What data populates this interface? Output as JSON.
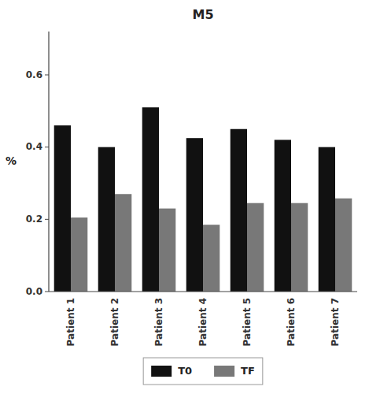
{
  "chart_data": {
    "type": "bar",
    "title": "M5",
    "ylabel": "%",
    "categories": [
      "Patient 1",
      "Patient 2",
      "Patient 3",
      "Patient 4",
      "Patient 5",
      "Patient 6",
      "Patient 7"
    ],
    "series": [
      {
        "name": "T0",
        "color": "#111111",
        "values": [
          0.46,
          0.4,
          0.51,
          0.425,
          0.45,
          0.42,
          0.4
        ]
      },
      {
        "name": "TF",
        "color": "#787878",
        "values": [
          0.205,
          0.27,
          0.23,
          0.185,
          0.245,
          0.245,
          0.258
        ]
      }
    ],
    "ylim": [
      0,
      0.72
    ],
    "yticks": [
      {
        "value": 0,
        "label": "0.0"
      },
      0.2,
      0.4,
      0.6
    ],
    "grid": false,
    "legend": "bottom"
  }
}
